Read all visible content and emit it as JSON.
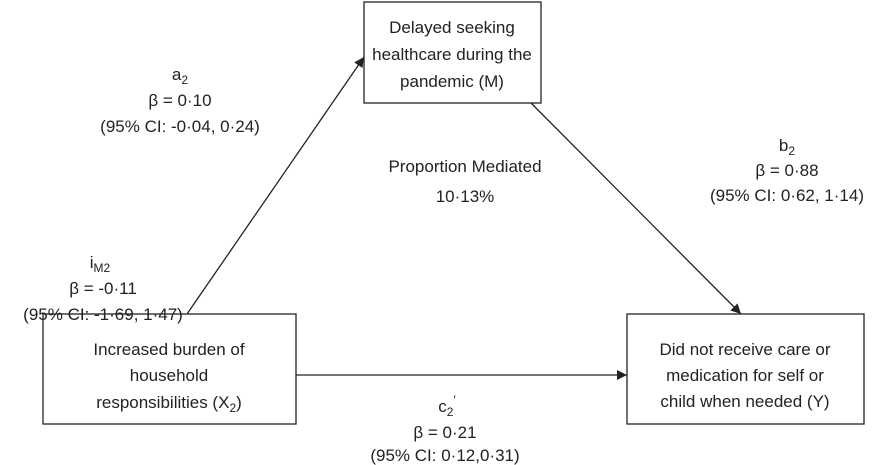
{
  "nodes": [
    {
      "id": "M",
      "lines": [
        "Delayed seeking",
        "healthcare during the",
        "pandemic (M)"
      ]
    },
    {
      "id": "X",
      "lines": [
        "Increased burden of",
        "household"
      ],
      "last": {
        "text": "responsibilities (X",
        "sub": "2",
        "tail": ")"
      }
    },
    {
      "id": "Y",
      "lines": [
        "Did not receive care or",
        "medication for self or",
        "child when needed (Y)"
      ]
    }
  ],
  "edges": [
    {
      "from": "X",
      "to": "M",
      "symbol": "a",
      "sub": "2",
      "beta": "β = 0·10",
      "ci": "(95% CI: -0·04, 0·24)"
    },
    {
      "from": "M",
      "to": "Y",
      "symbol": "b",
      "sub": "2",
      "beta": "β = 0·88",
      "ci": "(95% CI: 0·62, 1·14)"
    },
    {
      "from": "X",
      "to": "Y",
      "symbol": "c",
      "sub": "2",
      "sup": "′",
      "beta": "β = 0·21",
      "ci": "(95% CI: 0·12,0·31)"
    }
  ],
  "indirect": {
    "symbol": "i",
    "sub": "M2",
    "beta": "β = -0·11",
    "ci": "(95% CI: -1·69, 1·47)"
  },
  "proportion": {
    "label": "Proportion Mediated",
    "value": "10·13%"
  }
}
